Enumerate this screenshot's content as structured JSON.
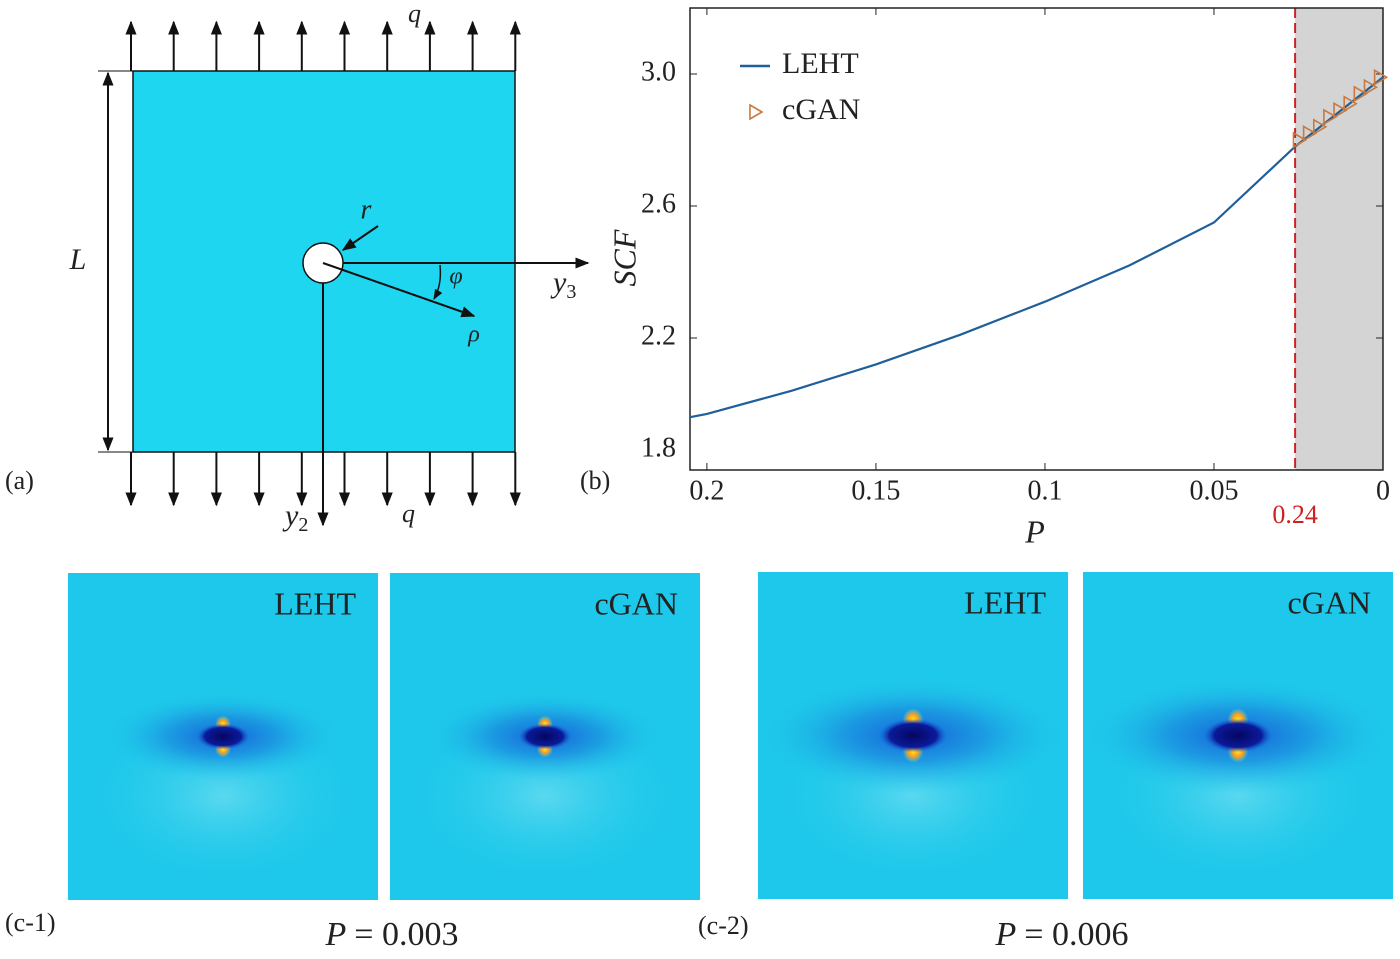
{
  "panel_a": {
    "label": "(a)",
    "load_top": "q",
    "load_bottom": "q",
    "length": "L",
    "radius": "r",
    "angle": "φ",
    "radial": "ρ",
    "axis_horizontal": {
      "base": "y",
      "sub": "3"
    },
    "axis_vertical": {
      "base": "y",
      "sub": "2"
    }
  },
  "chart_data": {
    "type": "line",
    "panel_label": "(b)",
    "xlabel": "P",
    "ylabel": "SCF",
    "xlim": [
      0.205,
      0
    ],
    "ylim": [
      1.8,
      3.2
    ],
    "xticks": [
      0.2,
      0.15,
      0.1,
      0.05,
      0
    ],
    "yticks": [
      1.8,
      2.2,
      2.6,
      {
        "value": 3,
        "label": "3.0"
      }
    ],
    "series": [
      {
        "name": "LEHT",
        "color": "#1f5f9a",
        "style": "line",
        "x": [
          0.205,
          0.2,
          0.175,
          0.15,
          0.125,
          0.1,
          0.075,
          0.05,
          0.026,
          0
        ],
        "values": [
          1.96,
          1.97,
          2.04,
          2.12,
          2.21,
          2.31,
          2.42,
          2.55,
          2.78,
          2.99
        ]
      },
      {
        "name": "cGAN",
        "color": "#c87941",
        "style": "triangle-right",
        "x": [
          0.025,
          0.022,
          0.019,
          0.016,
          0.013,
          0.01,
          0.007,
          0.004,
          0.001
        ],
        "values": [
          2.8,
          2.82,
          2.84,
          2.87,
          2.89,
          2.91,
          2.94,
          2.96,
          2.99
        ]
      }
    ],
    "shaded_region": {
      "xlim": [
        0.026,
        0
      ],
      "color": "#d4d4d4"
    },
    "threshold": {
      "x": 0.026,
      "color": "#cc2222",
      "annotation": "0.24"
    },
    "legend": "upper left"
  },
  "panel_c": [
    {
      "label": "(c-1)",
      "maps": [
        "LEHT",
        "cGAN"
      ],
      "caption": {
        "symbol": "P",
        "text": "= 0.003"
      }
    },
    {
      "label": "(c-2)",
      "maps": [
        "LEHT",
        "cGAN"
      ],
      "caption": {
        "symbol": "P",
        "text": "= 0.006"
      }
    }
  ]
}
